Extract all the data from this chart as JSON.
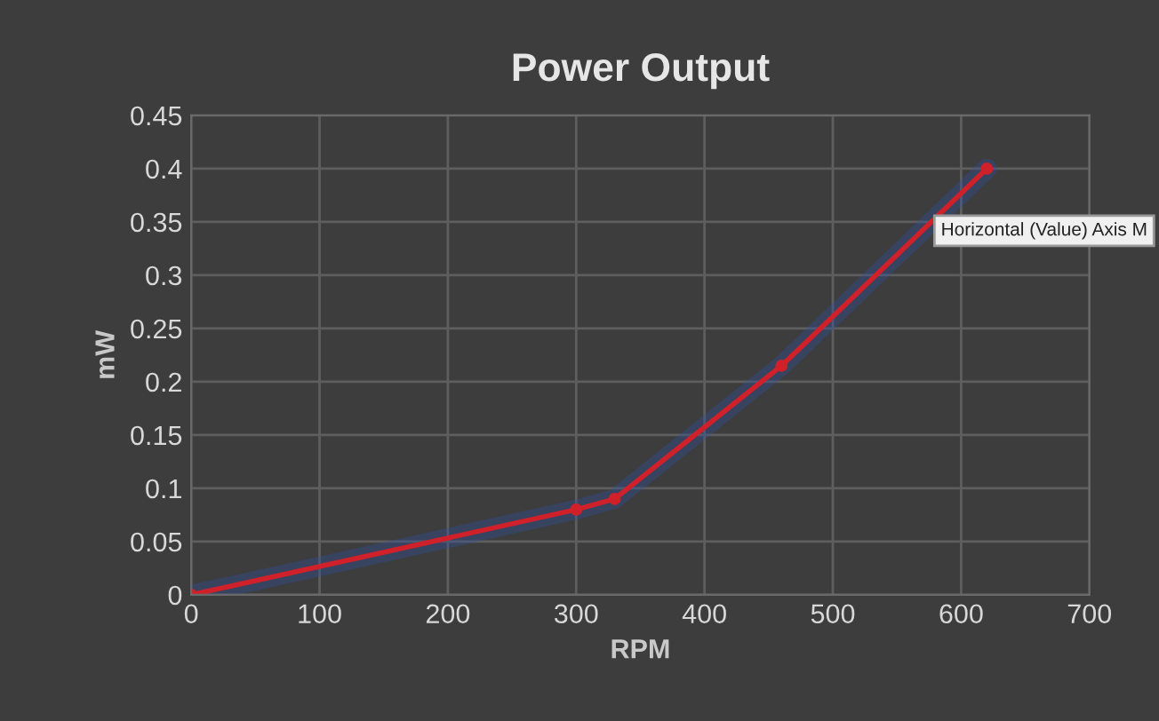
{
  "chart_data": {
    "type": "line",
    "title": "Power Output",
    "xlabel": "RPM",
    "ylabel": "mW",
    "x": [
      0,
      300,
      330,
      460,
      620
    ],
    "series": [
      {
        "color": "#d0202a",
        "values": [
          0,
          0.08,
          0.09,
          0.215,
          0.4
        ]
      }
    ],
    "xlim": [
      0,
      700
    ],
    "xticks": [
      0,
      100,
      200,
      300,
      400,
      500,
      600,
      700
    ],
    "ylim": [
      0,
      0.45
    ],
    "yticks": [
      0,
      0.05,
      0.1,
      0.15,
      0.2,
      0.25,
      0.3,
      0.35,
      0.4,
      0.45
    ],
    "grid": true,
    "marker": "circle",
    "line_style": "solid",
    "annotations": [
      "Horizontal (Value) Axis M"
    ]
  }
}
